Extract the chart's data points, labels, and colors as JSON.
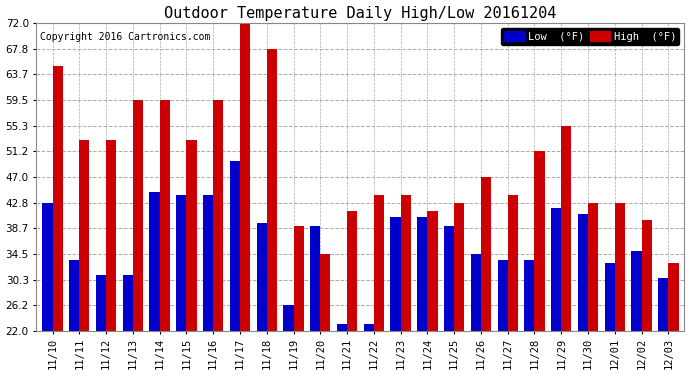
{
  "title": "Outdoor Temperature Daily High/Low 20161204",
  "copyright": "Copyright 2016 Cartronics.com",
  "legend_low_label": "Low  (°F)",
  "legend_high_label": "High  (°F)",
  "low_color": "#0000cc",
  "high_color": "#cc0000",
  "background_color": "#ffffff",
  "plot_bg_color": "#ffffff",
  "grid_color": "#aaaaaa",
  "ylim": [
    22.0,
    72.0
  ],
  "yticks": [
    22.0,
    26.2,
    30.3,
    34.5,
    38.7,
    42.8,
    47.0,
    51.2,
    55.3,
    59.5,
    63.7,
    67.8,
    72.0
  ],
  "dates": [
    "11/10",
    "11/11",
    "11/12",
    "11/13",
    "11/14",
    "11/15",
    "11/16",
    "11/17",
    "11/18",
    "11/19",
    "11/20",
    "11/21",
    "11/22",
    "11/23",
    "11/24",
    "11/25",
    "11/26",
    "11/27",
    "11/28",
    "11/29",
    "11/30",
    "12/01",
    "12/02",
    "12/03"
  ],
  "highs": [
    65.0,
    53.0,
    53.0,
    59.5,
    59.5,
    53.0,
    59.5,
    72.0,
    67.8,
    39.0,
    34.5,
    41.5,
    44.0,
    44.0,
    41.5,
    42.8,
    47.0,
    44.0,
    51.2,
    55.3,
    42.8,
    42.8,
    40.0,
    33.0
  ],
  "lows": [
    42.8,
    33.5,
    31.0,
    31.0,
    44.5,
    44.0,
    44.0,
    49.5,
    39.5,
    26.2,
    39.0,
    23.0,
    23.0,
    40.5,
    40.5,
    39.0,
    34.5,
    33.5,
    33.5,
    42.0,
    41.0,
    33.0,
    35.0,
    30.5
  ],
  "bar_width": 0.38,
  "title_fontsize": 11,
  "tick_fontsize": 7.5,
  "copyright_fontsize": 7
}
